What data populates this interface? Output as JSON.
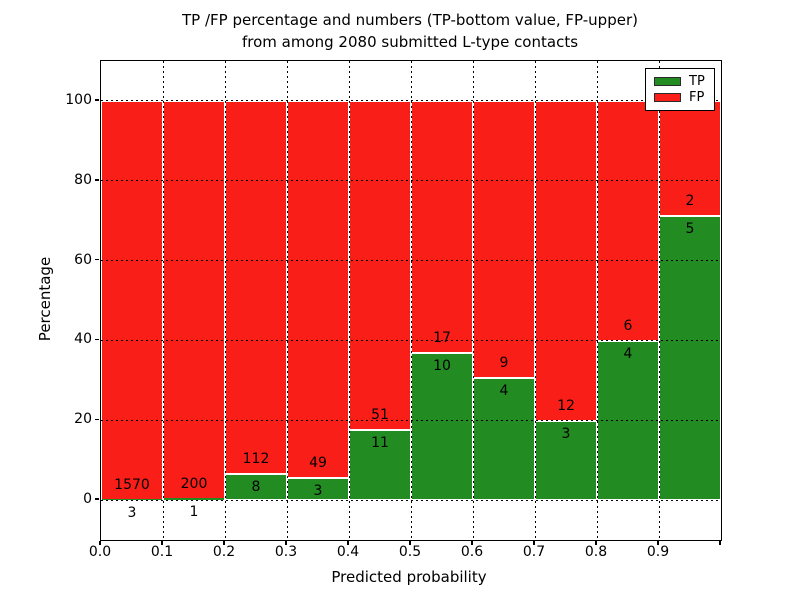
{
  "chart_data": {
    "type": "bar",
    "stacked": true,
    "percentage_scale": true,
    "title_line1": "TP /FP percentage and numbers (TP-bottom value, FP-upper)",
    "title_line2": "from among 2080 submitted L-type contacts",
    "xlabel": "Predicted probability",
    "ylabel": "Percentage",
    "total_contacts": 2080,
    "x_ticks": [
      "0.0",
      "0.1",
      "0.2",
      "0.3",
      "0.4",
      "0.5",
      "0.6",
      "0.7",
      "0.8",
      "0.9"
    ],
    "y_ticks": [
      "0",
      "20",
      "40",
      "60",
      "80",
      "100"
    ],
    "y_tick_values": [
      0,
      20,
      40,
      60,
      80,
      100
    ],
    "ylim": [
      -10,
      110
    ],
    "xlim": [
      0.0,
      1.0
    ],
    "grid": "dotted",
    "legend_position": "upper right",
    "categories": [
      "0.0-0.1",
      "0.1-0.2",
      "0.2-0.3",
      "0.3-0.4",
      "0.4-0.5",
      "0.5-0.6",
      "0.6-0.7",
      "0.7-0.8",
      "0.8-0.9",
      "0.9-1.0"
    ],
    "series": [
      {
        "name": "TP",
        "color": "#228b22",
        "values": [
          3,
          1,
          8,
          3,
          11,
          10,
          4,
          3,
          4,
          5
        ]
      },
      {
        "name": "FP",
        "color": "#fa1e19",
        "values": [
          1570,
          200,
          112,
          49,
          51,
          17,
          9,
          12,
          6,
          2
        ]
      }
    ],
    "tp_percent": [
      0.19,
      0.5,
      6.67,
      5.77,
      17.74,
      37.04,
      30.77,
      20.0,
      40.0,
      71.43
    ],
    "legend": [
      {
        "label": "TP",
        "color": "#228b22"
      },
      {
        "label": "FP",
        "color": "#fa1e19"
      }
    ],
    "colors": {
      "tp": "#228b22",
      "fp": "#fa1e19",
      "grid": "#000000",
      "background": "#ffffff",
      "text": "#000000"
    }
  }
}
